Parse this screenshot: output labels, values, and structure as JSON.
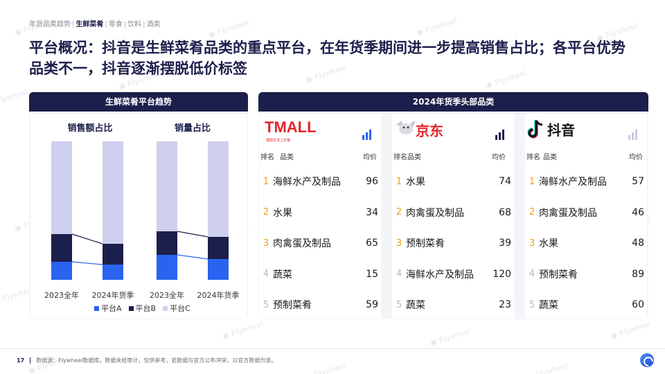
{
  "breadcrumb": {
    "items": [
      "年货品类趋势",
      "生鲜菜肴",
      "零食",
      "饮料",
      "酒类"
    ],
    "active_index": 1
  },
  "title": "平台概况：抖音是生鲜菜肴品类的重点平台，在年货季期间进一步提高销售占比；各平台优势品类不一，抖音逐渐摆脱低价标签",
  "left_panel": {
    "header": "生鲜菜肴平台趋势"
  },
  "right_panel": {
    "header": "2024年货季头部品类"
  },
  "chart_data": [
    {
      "type": "bar",
      "stacked": true,
      "title": "销售额占比",
      "categories": [
        "2023全年",
        "2024年货季"
      ],
      "series": [
        {
          "name": "平台A",
          "values": [
            13,
            11
          ]
        },
        {
          "name": "平台B",
          "values": [
            20,
            15
          ]
        },
        {
          "name": "平台C",
          "values": [
            67,
            74
          ]
        }
      ],
      "ylim": [
        0,
        100
      ]
    },
    {
      "type": "bar",
      "stacked": true,
      "title": "销量占比",
      "categories": [
        "2023全年",
        "2024年货季"
      ],
      "series": [
        {
          "name": "平台A",
          "values": [
            18,
            15
          ]
        },
        {
          "name": "平台B",
          "values": [
            17,
            16
          ]
        },
        {
          "name": "平台C",
          "values": [
            65,
            69
          ]
        }
      ],
      "ylim": [
        0,
        100
      ]
    }
  ],
  "legend": [
    {
      "name": "平台A",
      "color": "#2a63f0"
    },
    {
      "name": "平台B",
      "color": "#1c1f4b"
    },
    {
      "name": "平台C",
      "color": "#cfd0ee"
    }
  ],
  "platforms": [
    {
      "logo_text": "TMALL",
      "logo_sub": "理想生活上天猫",
      "logo_color": "#e1252b",
      "icon": "bar-chart-icon",
      "icon_color": "#2a63f0",
      "col_rank": "排名",
      "col_cat": "品类",
      "col_price": "均价",
      "rows": [
        {
          "rank": "1",
          "name": "海鲜水产及制品",
          "value": "96"
        },
        {
          "rank": "2",
          "name": "水果",
          "value": "34"
        },
        {
          "rank": "3",
          "name": "肉禽蛋及制品",
          "value": "65"
        },
        {
          "rank": "4",
          "name": "蔬菜",
          "value": "15"
        },
        {
          "rank": "5",
          "name": "预制菜肴",
          "value": "59"
        }
      ]
    },
    {
      "logo_text": "京东",
      "logo_color": "#e1252b",
      "icon": "bar-chart-icon",
      "icon_color": "#1c1f4b",
      "col_rank": "排名品类",
      "col_price": "均价",
      "rows": [
        {
          "rank": "1",
          "name": "水果",
          "value": "74"
        },
        {
          "rank": "2",
          "name": "肉禽蛋及制品",
          "value": "68"
        },
        {
          "rank": "3",
          "name": "预制菜肴",
          "value": "39"
        },
        {
          "rank": "4",
          "name": "海鲜水产及制品",
          "value": "120"
        },
        {
          "rank": "5",
          "name": "蔬菜",
          "value": "23"
        }
      ]
    },
    {
      "logo_text": "抖音",
      "logo_color": "#111111",
      "icon": "bar-chart-icon",
      "icon_color": "#c9cae8",
      "col_rank": "排名",
      "col_cat": "品类",
      "col_price": "均价",
      "rows": [
        {
          "rank": "1",
          "name": "海鲜水产及制品",
          "value": "57"
        },
        {
          "rank": "2",
          "name": "肉禽蛋及制品",
          "value": "46"
        },
        {
          "rank": "3",
          "name": "水果",
          "value": "48"
        },
        {
          "rank": "4",
          "name": "预制菜肴",
          "value": "89"
        },
        {
          "rank": "5",
          "name": "蔬菜",
          "value": "60"
        }
      ]
    }
  ],
  "footer": {
    "page": "17",
    "source": "数据源：Flywheel数据库。数据未经审计，仅供参考，若数据与官方公布冲突，以官方数据为准。"
  },
  "watermark_text": "Flywheel"
}
